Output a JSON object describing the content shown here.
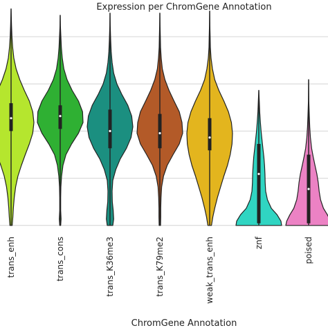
{
  "chart_data": {
    "type": "violin",
    "title": "Expression per ChromGene Annotation",
    "xlabel": "ChromGene Annotation",
    "ylabel": "",
    "ylim": [
      0,
      10
    ],
    "grid": true,
    "y_gridlines": [
      0.2,
      2.4,
      4.6,
      6.8,
      9.0
    ],
    "categories": [
      "trans_enh",
      "trans_cons",
      "trans_K36me3",
      "trans_K79me2",
      "weak_trans_enh",
      "znf",
      "poised"
    ],
    "series": [
      {
        "category": "trans_enh",
        "color": "#b5e62e",
        "min": 0.2,
        "max": 10.3,
        "q1": 4.6,
        "median": 5.2,
        "q3": 5.9,
        "density": [
          [
            0.2,
            0.05
          ],
          [
            0.6,
            0.08
          ],
          [
            1.0,
            0.1
          ],
          [
            1.5,
            0.14
          ],
          [
            2.0,
            0.2
          ],
          [
            2.5,
            0.3
          ],
          [
            3.0,
            0.45
          ],
          [
            3.5,
            0.62
          ],
          [
            4.0,
            0.8
          ],
          [
            4.5,
            0.95
          ],
          [
            5.0,
            1.0
          ],
          [
            5.5,
            0.95
          ],
          [
            6.0,
            0.8
          ],
          [
            6.5,
            0.58
          ],
          [
            7.0,
            0.38
          ],
          [
            7.5,
            0.22
          ],
          [
            8.0,
            0.12
          ],
          [
            8.5,
            0.07
          ],
          [
            9.0,
            0.04
          ],
          [
            9.5,
            0.02
          ],
          [
            10.3,
            0.0
          ]
        ]
      },
      {
        "category": "trans_cons",
        "color": "#2fb033",
        "min": 0.2,
        "max": 10.0,
        "q1": 4.7,
        "median": 5.3,
        "q3": 5.8,
        "density": [
          [
            0.2,
            0.02
          ],
          [
            0.5,
            0.04
          ],
          [
            0.9,
            0.02
          ],
          [
            1.5,
            0.02
          ],
          [
            2.0,
            0.03
          ],
          [
            2.5,
            0.06
          ],
          [
            3.0,
            0.12
          ],
          [
            3.5,
            0.25
          ],
          [
            4.0,
            0.5
          ],
          [
            4.5,
            0.8
          ],
          [
            5.0,
            1.0
          ],
          [
            5.5,
            0.98
          ],
          [
            6.0,
            0.8
          ],
          [
            6.5,
            0.52
          ],
          [
            7.0,
            0.3
          ],
          [
            7.5,
            0.16
          ],
          [
            8.0,
            0.09
          ],
          [
            8.5,
            0.05
          ],
          [
            9.0,
            0.03
          ],
          [
            9.5,
            0.01
          ],
          [
            10.0,
            0.0
          ]
        ]
      },
      {
        "category": "trans_K36me3",
        "color": "#1b8f80",
        "min": 0.2,
        "max": 10.1,
        "q1": 3.8,
        "median": 4.6,
        "q3": 5.6,
        "density": [
          [
            0.2,
            0.12
          ],
          [
            0.5,
            0.16
          ],
          [
            0.9,
            0.14
          ],
          [
            1.3,
            0.1
          ],
          [
            1.8,
            0.09
          ],
          [
            2.3,
            0.12
          ],
          [
            2.8,
            0.25
          ],
          [
            3.3,
            0.45
          ],
          [
            3.8,
            0.72
          ],
          [
            4.3,
            0.92
          ],
          [
            4.8,
            1.0
          ],
          [
            5.3,
            0.95
          ],
          [
            5.8,
            0.78
          ],
          [
            6.3,
            0.52
          ],
          [
            6.8,
            0.3
          ],
          [
            7.3,
            0.16
          ],
          [
            7.8,
            0.09
          ],
          [
            8.3,
            0.05
          ],
          [
            8.8,
            0.03
          ],
          [
            9.5,
            0.01
          ],
          [
            10.1,
            0.0
          ]
        ]
      },
      {
        "category": "trans_K79me2",
        "color": "#b35a28",
        "min": 0.2,
        "max": 10.1,
        "q1": 3.8,
        "median": 4.5,
        "q3": 5.4,
        "density": [
          [
            0.2,
            0.03
          ],
          [
            0.6,
            0.04
          ],
          [
            1.0,
            0.04
          ],
          [
            1.5,
            0.05
          ],
          [
            2.0,
            0.08
          ],
          [
            2.5,
            0.16
          ],
          [
            3.0,
            0.32
          ],
          [
            3.5,
            0.58
          ],
          [
            4.0,
            0.85
          ],
          [
            4.5,
            1.0
          ],
          [
            5.0,
            0.97
          ],
          [
            5.5,
            0.85
          ],
          [
            6.0,
            0.62
          ],
          [
            6.5,
            0.4
          ],
          [
            7.0,
            0.22
          ],
          [
            7.5,
            0.11
          ],
          [
            8.0,
            0.06
          ],
          [
            8.5,
            0.03
          ],
          [
            9.0,
            0.02
          ],
          [
            9.5,
            0.01
          ],
          [
            10.1,
            0.0
          ]
        ]
      },
      {
        "category": "weak_trans_enh",
        "color": "#e3b51e",
        "min": 0.2,
        "max": 10.2,
        "q1": 3.7,
        "median": 4.3,
        "q3": 5.2,
        "density": [
          [
            0.2,
            0.08
          ],
          [
            0.6,
            0.14
          ],
          [
            1.0,
            0.22
          ],
          [
            1.5,
            0.34
          ],
          [
            2.0,
            0.48
          ],
          [
            2.5,
            0.62
          ],
          [
            3.0,
            0.78
          ],
          [
            3.5,
            0.9
          ],
          [
            4.0,
            0.98
          ],
          [
            4.5,
            1.0
          ],
          [
            5.0,
            0.95
          ],
          [
            5.5,
            0.82
          ],
          [
            6.0,
            0.62
          ],
          [
            6.5,
            0.4
          ],
          [
            7.0,
            0.22
          ],
          [
            7.5,
            0.12
          ],
          [
            8.0,
            0.06
          ],
          [
            8.5,
            0.03
          ],
          [
            9.0,
            0.02
          ],
          [
            9.5,
            0.01
          ],
          [
            10.2,
            0.0
          ]
        ]
      },
      {
        "category": "znf",
        "color": "#30d5c2",
        "min": 0.2,
        "max": 6.5,
        "q1": 0.3,
        "median": 2.6,
        "q3": 4.0,
        "density": [
          [
            0.2,
            1.0
          ],
          [
            0.4,
            0.97
          ],
          [
            0.7,
            0.8
          ],
          [
            1.0,
            0.55
          ],
          [
            1.4,
            0.38
          ],
          [
            1.8,
            0.3
          ],
          [
            2.2,
            0.28
          ],
          [
            2.6,
            0.27
          ],
          [
            3.0,
            0.25
          ],
          [
            3.4,
            0.22
          ],
          [
            3.8,
            0.18
          ],
          [
            4.2,
            0.14
          ],
          [
            4.6,
            0.1
          ],
          [
            5.0,
            0.07
          ],
          [
            5.5,
            0.04
          ],
          [
            6.0,
            0.02
          ],
          [
            6.5,
            0.0
          ]
        ]
      },
      {
        "category": "poised",
        "color": "#ec82c4",
        "min": 0.2,
        "max": 7.0,
        "q1": 0.3,
        "median": 1.9,
        "q3": 3.5,
        "density": [
          [
            0.2,
            1.0
          ],
          [
            0.4,
            0.96
          ],
          [
            0.7,
            0.82
          ],
          [
            1.0,
            0.65
          ],
          [
            1.4,
            0.52
          ],
          [
            1.8,
            0.46
          ],
          [
            2.2,
            0.42
          ],
          [
            2.6,
            0.36
          ],
          [
            3.0,
            0.28
          ],
          [
            3.4,
            0.2
          ],
          [
            3.8,
            0.13
          ],
          [
            4.3,
            0.08
          ],
          [
            4.8,
            0.05
          ],
          [
            5.3,
            0.03
          ],
          [
            6.0,
            0.01
          ],
          [
            7.0,
            0.0
          ]
        ]
      }
    ]
  }
}
